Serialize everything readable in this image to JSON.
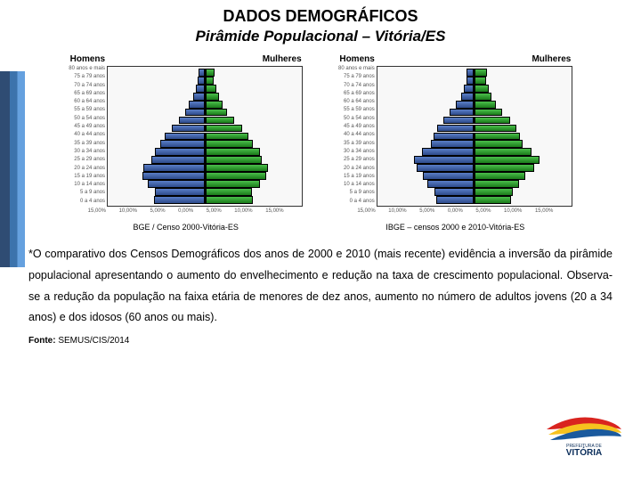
{
  "title": "DADOS DEMOGRÁFICOS",
  "subtitle": "Pirâmide Populacional – Vitória/ES",
  "header_male": "Homens",
  "header_female": "Mulheres",
  "age_labels": [
    "80 anos e mais",
    "75 a 79 anos",
    "70 a 74 anos",
    "65 a 69 anos",
    "60 a 64 anos",
    "55 a 59 anos",
    "50 a 54 anos",
    "45 a 49 anos",
    "40 a 44 anos",
    "35 a 39 anos",
    "30 a 34 anos",
    "25 a 29 anos",
    "20 a 24 anos",
    "15 a 19 anos",
    "10 a 14 anos",
    "5 a 9 anos",
    "0 a 4 anos"
  ],
  "chart_left": {
    "caption": "BGE / Censo 2000-Vitória-ES",
    "xticks": [
      "15,00%",
      "10,00%",
      "5,00%",
      "0,00%",
      "5,00%",
      "10,00%",
      "15,00%"
    ],
    "xmax_pct": 15,
    "male_colors": [
      "#5a7ec7",
      "#2d4a8a"
    ],
    "female_colors": [
      "#4abf4a",
      "#1a7a1a"
    ],
    "male": [
      0.9,
      1.0,
      1.4,
      1.8,
      2.4,
      3.0,
      4.0,
      5.2,
      6.2,
      7.0,
      7.8,
      8.4,
      9.6,
      9.8,
      9.0,
      7.8,
      8.0
    ],
    "female": [
      1.5,
      1.4,
      1.8,
      2.2,
      2.8,
      3.4,
      4.6,
      5.8,
      6.8,
      7.6,
      8.6,
      9.0,
      10.0,
      9.6,
      8.6,
      7.4,
      7.6
    ]
  },
  "chart_right": {
    "caption": "IBGE – censos 2000 e 2010-Vitória-ES",
    "xticks": [
      "15,00%",
      "10,00%",
      "5,00%",
      "0,00%",
      "5,00%",
      "10,00%",
      "15,00%"
    ],
    "xmax_pct": 15,
    "male_colors": [
      "#5a7ec7",
      "#2d4a8a"
    ],
    "female_colors": [
      "#4abf4a",
      "#1a7a1a"
    ],
    "male": [
      1.2,
      1.2,
      1.6,
      2.0,
      2.8,
      3.8,
      4.8,
      5.8,
      6.4,
      6.8,
      8.2,
      9.4,
      9.0,
      8.0,
      7.4,
      6.2,
      6.0
    ],
    "female": [
      2.0,
      1.8,
      2.2,
      2.6,
      3.4,
      4.4,
      5.6,
      6.6,
      7.2,
      7.6,
      9.0,
      10.2,
      9.4,
      8.0,
      7.0,
      6.0,
      5.8
    ]
  },
  "paragraph": "*O comparativo  dos Censos Demográficos dos anos de 2000 e 2010 (mais recente) evidência a inversão da pirâmide populacional apresentando o aumento do envelhecimento e redução  na taxa de crescimento populacional. Observa-se a redução da população na faixa etária de menores de dez anos, aumento no número de adultos jovens (20 a 34 anos) e dos idosos (60 anos ou mais).",
  "fonte_label": "Fonte: ",
  "fonte_value": "SEMUS/CIS/2014",
  "logo_text": "VITÓRIA",
  "logo_sub": "PREFEITURA DE",
  "colors": {
    "accent_dark": "#0a2d5a",
    "accent_mid": "#1a5a9e",
    "accent_light": "#4a90d9",
    "swoosh_red": "#d9241f",
    "swoosh_yellow": "#f6c21f",
    "swoosh_blue": "#1a5a9e"
  }
}
